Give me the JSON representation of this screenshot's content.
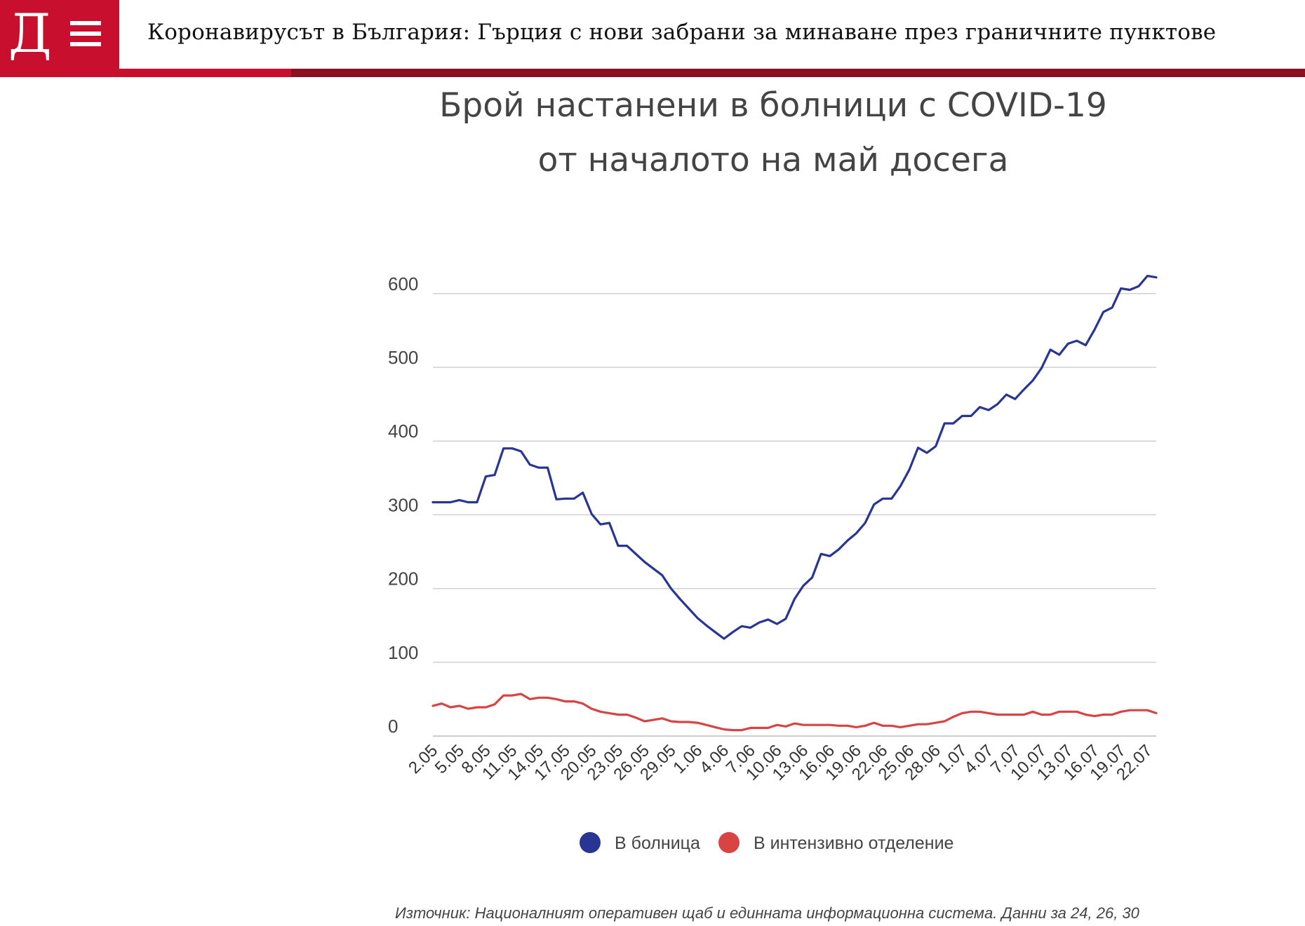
{
  "header": {
    "logo_letter": "Д",
    "headline": "Коронавирусът в България: Гърция с нови забрани за минаване през граничните пунктове"
  },
  "chart_title_line1": "Брой настанени в болници с COVID-19",
  "chart_title_line2": "от началото на май досега",
  "source": "Източник: Националният оперативен щаб и единната информационна система. Данни за 24, 26, 30",
  "colors": {
    "brand": "#c8102e",
    "hospital": "#283593",
    "icu": "#d84343",
    "grid": "#d0d0d0"
  },
  "chart_data": {
    "type": "line",
    "title": "Брой настанени в болници с COVID-19 от началото на май досега",
    "ylim": [
      0,
      650
    ],
    "yticks": [
      0,
      100,
      200,
      300,
      400,
      500,
      600
    ],
    "xtick_labels": [
      "2.05",
      "5.05",
      "8.05",
      "11.05",
      "14.05",
      "17.05",
      "20.05",
      "23.05",
      "26.05",
      "29.05",
      "1.06",
      "4.06",
      "7.06",
      "10.06",
      "13.06",
      "16.06",
      "19.06",
      "22.06",
      "25.06",
      "28.06",
      "1.07",
      "4.07",
      "7.07",
      "10.07",
      "13.07",
      "16.07",
      "19.07",
      "22.07"
    ],
    "grid": true,
    "legend_position": "bottom",
    "series": [
      {
        "name": "В болница",
        "values": [
          317,
          317,
          317,
          320,
          317,
          317,
          352,
          354,
          390,
          390,
          386,
          368,
          364,
          364,
          321,
          322,
          322,
          330,
          301,
          287,
          289,
          258,
          258,
          247,
          236,
          227,
          218,
          200,
          186,
          173,
          160,
          150,
          141,
          132,
          141,
          149,
          147,
          154,
          158,
          152,
          159,
          186,
          204,
          215,
          247,
          244,
          253,
          265,
          275,
          289,
          314,
          322,
          322,
          339,
          361,
          391,
          384,
          393,
          424,
          424,
          434,
          434,
          446,
          442,
          450,
          463,
          457,
          470,
          482,
          499,
          524,
          517,
          532,
          536,
          530,
          551,
          575,
          581,
          607,
          605,
          610,
          624,
          622
        ]
      },
      {
        "name": "В интензивно отделение",
        "values": [
          41,
          44,
          39,
          41,
          37,
          39,
          39,
          43,
          55,
          55,
          57,
          50,
          52,
          52,
          50,
          47,
          47,
          44,
          37,
          33,
          31,
          29,
          29,
          25,
          20,
          22,
          24,
          20,
          19,
          19,
          18,
          15,
          12,
          9,
          8,
          8,
          11,
          11,
          11,
          15,
          13,
          17,
          15,
          15,
          15,
          15,
          14,
          14,
          12,
          14,
          18,
          14,
          14,
          12,
          14,
          16,
          16,
          18,
          20,
          26,
          31,
          33,
          33,
          31,
          29,
          29,
          29,
          29,
          33,
          29,
          29,
          33,
          33,
          33,
          29,
          27,
          29,
          29,
          33,
          35,
          35,
          35,
          31
        ]
      }
    ]
  }
}
